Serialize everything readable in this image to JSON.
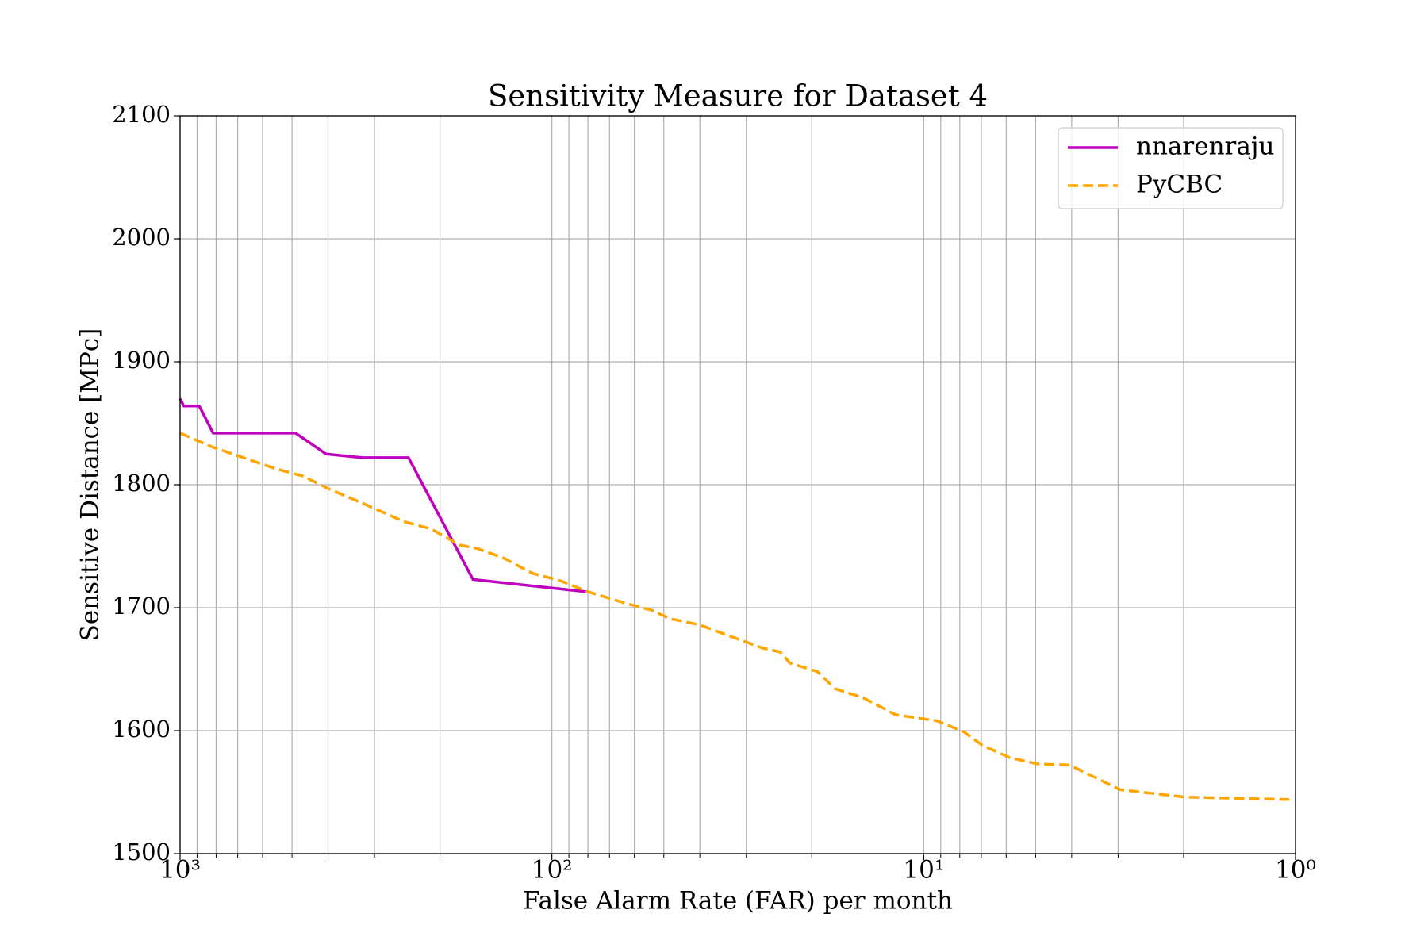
{
  "chart_data": {
    "type": "line",
    "title": "Sensitivity Measure for Dataset 4",
    "xlabel": "False Alarm Rate (FAR) per month",
    "ylabel": "Sensitive Distance [MPc]",
    "xscale": "log",
    "xlim": [
      1000,
      1
    ],
    "ylim": [
      1500,
      2100
    ],
    "xticks": [
      {
        "value": 1000,
        "label": "10³"
      },
      {
        "value": 100,
        "label": "10²"
      },
      {
        "value": 10,
        "label": "10¹"
      },
      {
        "value": 1,
        "label": "10⁰"
      }
    ],
    "xminorticks": [
      900,
      800,
      700,
      600,
      500,
      400,
      300,
      200,
      90,
      80,
      70,
      60,
      50,
      40,
      30,
      20,
      9,
      8,
      7,
      6,
      5,
      4,
      3,
      2
    ],
    "yticks": [
      1500,
      1600,
      1700,
      1800,
      1900,
      2000,
      2100
    ],
    "grid": true,
    "legend": "upper right",
    "series": [
      {
        "name": "nnarenraju",
        "color": "#bf00bf",
        "linestyle": "solid",
        "x": [
          1000,
          977,
          888,
          815,
          489,
          405,
          323,
          243,
          163,
          81
        ],
        "values": [
          1870,
          1864,
          1864,
          1842,
          1842,
          1825,
          1822,
          1822,
          1723,
          1713
        ]
      },
      {
        "name": "PyCBC",
        "color": "#ffa500",
        "linestyle": "dashed",
        "x": [
          1000,
          824,
          553,
          467,
          394,
          323,
          250,
          211,
          177,
          158,
          134,
          113,
          95,
          80,
          64,
          54,
          48,
          40,
          34,
          27,
          24.3,
          22.9,
          19.3,
          17.3,
          14.6,
          11.9,
          9.2,
          7.8,
          6.95,
          5.86,
          4.94,
          4.05,
          2.96,
          1.99,
          1.42,
          1.04
        ],
        "values": [
          1842,
          1831,
          1813,
          1807,
          1796,
          1785,
          1770,
          1764,
          1751,
          1748,
          1740,
          1728,
          1722,
          1713,
          1704,
          1698,
          1691,
          1686,
          1678,
          1667,
          1664,
          1655,
          1648,
          1634,
          1627,
          1613,
          1608,
          1599,
          1588,
          1578,
          1573,
          1572,
          1552,
          1546,
          1545,
          1544
        ]
      }
    ]
  }
}
